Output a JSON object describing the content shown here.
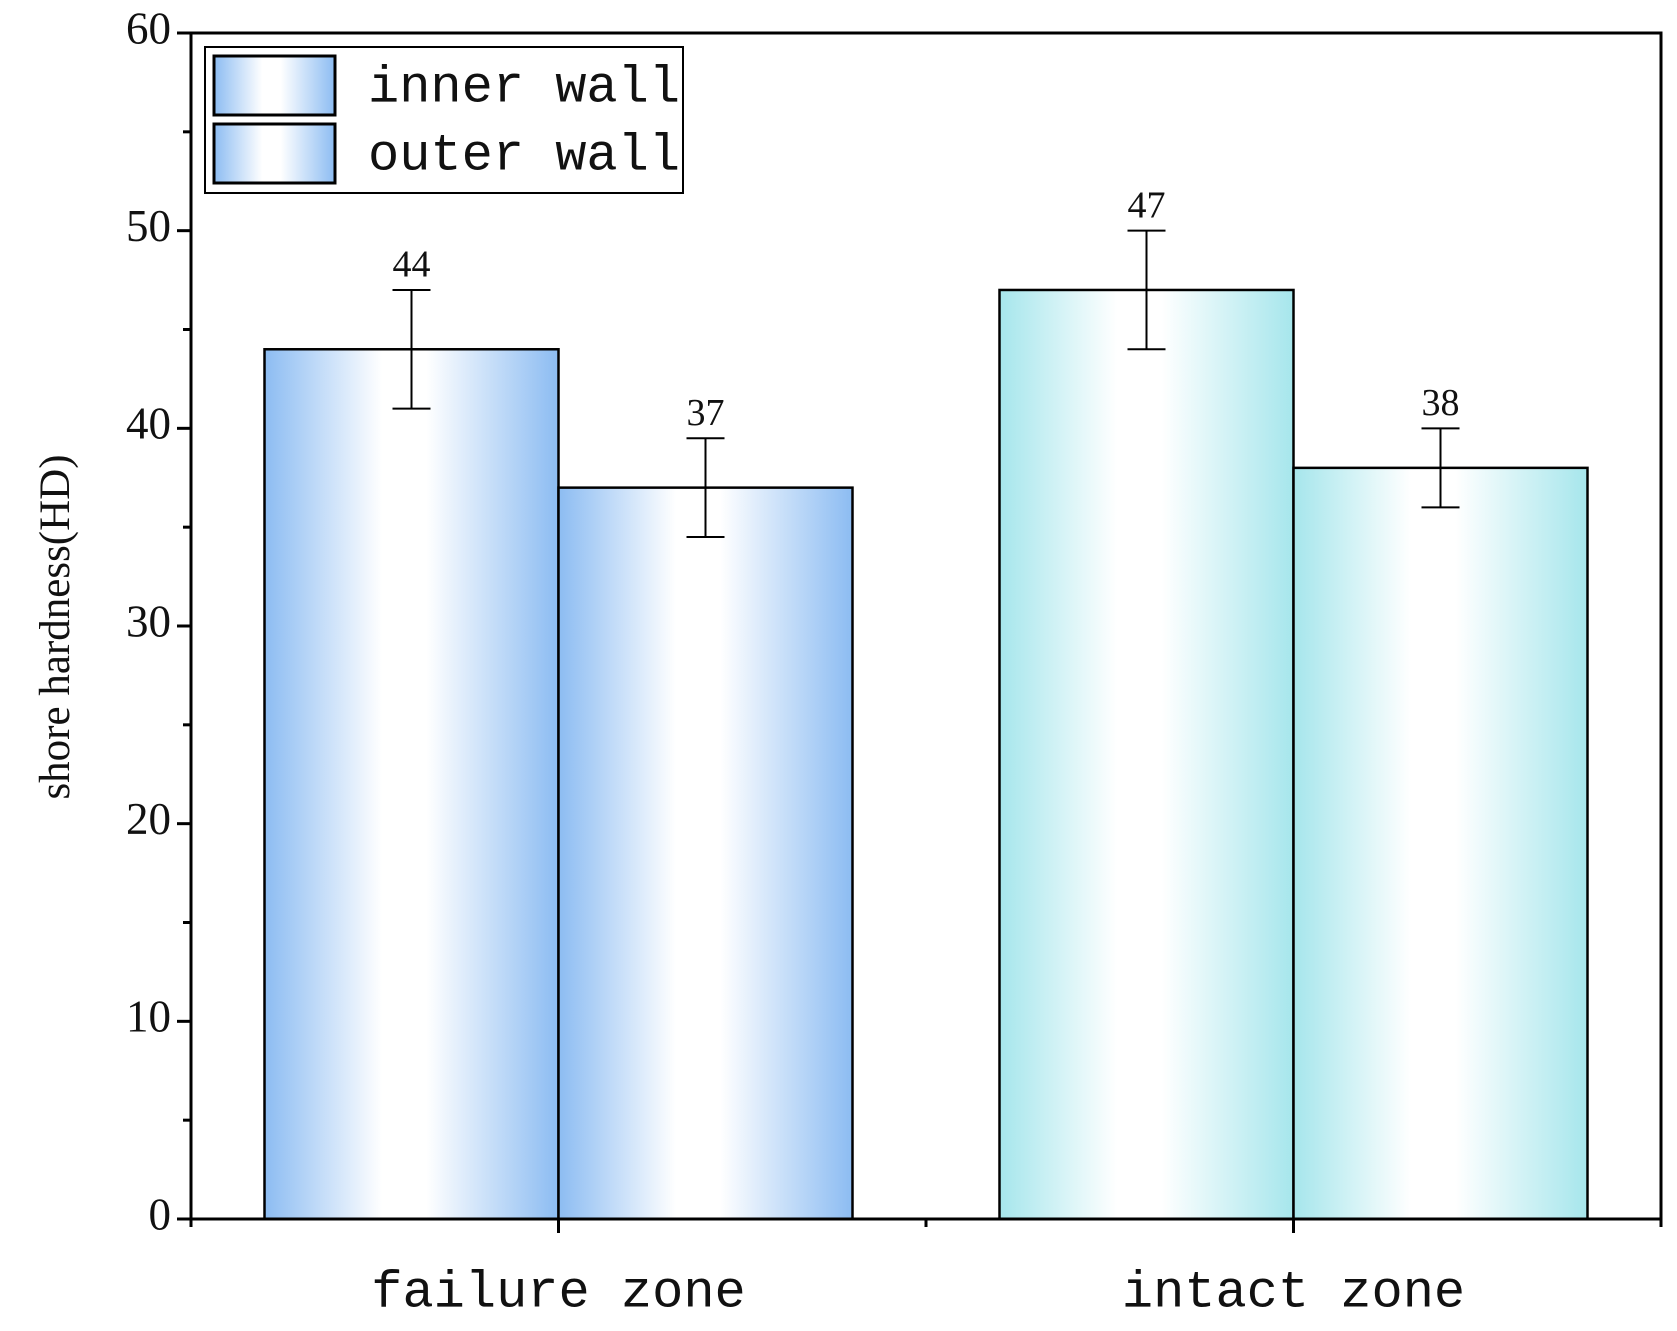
{
  "chart_data": {
    "type": "bar",
    "y_label": "shore hardness(HD)",
    "categories": [
      "failure zone",
      "intact zone"
    ],
    "category_colors": [
      "#8cbcf2",
      "#a6e6ec"
    ],
    "series": [
      {
        "name": "inner wall",
        "color": "#8cbcf2",
        "values": [
          44,
          47
        ],
        "errors": [
          3,
          3
        ]
      },
      {
        "name": "outer wall",
        "color": "#8cbcf2",
        "values": [
          37,
          38
        ],
        "errors": [
          2.5,
          2
        ]
      }
    ],
    "ylim": [
      0,
      60
    ],
    "yticks": [
      0,
      10,
      20,
      30,
      40,
      50,
      60
    ],
    "grid": false,
    "legend": "upper left"
  }
}
